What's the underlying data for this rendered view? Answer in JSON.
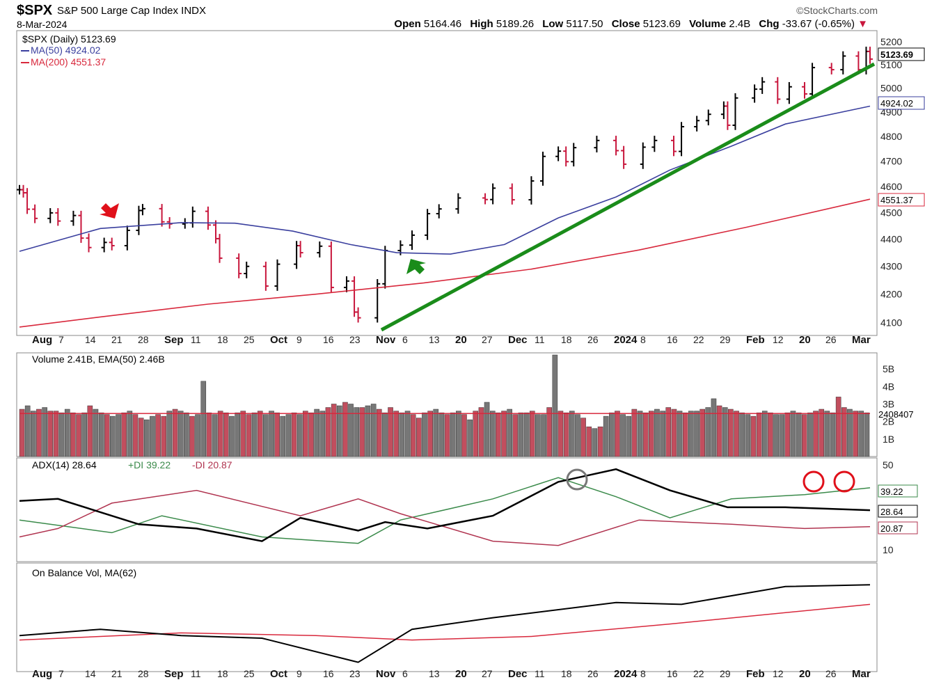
{
  "header": {
    "symbol": "$SPX",
    "name": "S&P 500 Large Cap Index INDX",
    "brand": "©StockCharts.com",
    "date": "8-Mar-2024",
    "open_label": "Open",
    "open": "5164.46",
    "high_label": "High",
    "high": "5189.26",
    "low_label": "Low",
    "low": "5117.50",
    "close_label": "Close",
    "close": "5123.69",
    "volume_label": "Volume",
    "volume": "2.4B",
    "chg_label": "Chg",
    "chg": "-33.67 (-0.65%)"
  },
  "colors": {
    "up": "#000000",
    "down": "#c8163c",
    "ma50": "#3a3f9e",
    "ma200": "#d8283c",
    "trend": "#1a8c1a",
    "pdi": "#3a8a4a",
    "mdi": "#b0334f",
    "vol_up": "#777777",
    "vol_down": "#c24e5e"
  },
  "legends": {
    "price": "$SPX (Daily) 5123.69",
    "ma50": "MA(50) 4924.02",
    "ma200": "MA(200) 4551.37",
    "volume": "Volume 2.41B, EMA(50) 2.46B",
    "adx": "ADX(14) 28.64",
    "pdi": "+DI 39.22",
    "mdi": "-DI 20.87",
    "obv": "On Balance Vol, MA(62)"
  },
  "tags": {
    "close": "5123.69",
    "ma50": "4924.02",
    "ma200": "4551.37",
    "volume": "2408407",
    "pdi": "39.22",
    "adx": "28.64",
    "mdi": "20.87"
  },
  "x_axis_labels": [
    "Aug",
    "7",
    "14",
    "21",
    "28",
    "Sep",
    "11",
    "18",
    "25",
    "Oct",
    "9",
    "16",
    "23",
    "Nov",
    "6",
    "13",
    "20",
    "27",
    "Dec",
    "11",
    "18",
    "26",
    "2024",
    "8",
    "16",
    "22",
    "29",
    "Feb",
    "12",
    "20",
    "26",
    "Mar"
  ],
  "chart_data": [
    {
      "type": "ohlc",
      "title": "$SPX (Daily) 5123.69",
      "ylim": [
        4080,
        5230
      ],
      "y_ticks": [
        4100,
        4200,
        4300,
        4400,
        4500,
        4600,
        4700,
        4800,
        4900,
        5000,
        5100,
        5200
      ],
      "scale": "log",
      "series": [
        {
          "name": "$SPX",
          "values": [
            [
              "2023-07-31",
              4588
            ],
            [
              "2023-08-01",
              4576
            ],
            [
              "2023-08-02",
              4513
            ],
            [
              "2023-08-04",
              4478
            ],
            [
              "2023-08-08",
              4499
            ],
            [
              "2023-08-10",
              4468
            ],
            [
              "2023-08-14",
              4489
            ],
            [
              "2023-08-16",
              4404
            ],
            [
              "2023-08-18",
              4369
            ],
            [
              "2023-08-22",
              4388
            ],
            [
              "2023-08-24",
              4376
            ],
            [
              "2023-08-28",
              4433
            ],
            [
              "2023-08-31",
              4508
            ],
            [
              "2023-09-01",
              4515
            ],
            [
              "2023-09-06",
              4465
            ],
            [
              "2023-09-08",
              4457
            ],
            [
              "2023-09-12",
              4461
            ],
            [
              "2023-09-14",
              4505
            ],
            [
              "2023-09-18",
              4453
            ],
            [
              "2023-09-20",
              4402
            ],
            [
              "2023-09-21",
              4330
            ],
            [
              "2023-09-26",
              4274
            ],
            [
              "2023-09-28",
              4300
            ],
            [
              "2023-10-03",
              4229
            ],
            [
              "2023-10-06",
              4308
            ],
            [
              "2023-10-11",
              4376
            ],
            [
              "2023-10-12",
              4350
            ],
            [
              "2023-10-17",
              4374
            ],
            [
              "2023-10-20",
              4224
            ],
            [
              "2023-10-24",
              4247
            ],
            [
              "2023-10-26",
              4137
            ],
            [
              "2023-10-27",
              4117
            ],
            [
              "2023-11-01",
              4237
            ],
            [
              "2023-11-03",
              4358
            ],
            [
              "2023-11-07",
              4378
            ],
            [
              "2023-11-10",
              4415
            ],
            [
              "2023-11-14",
              4496
            ],
            [
              "2023-11-17",
              4514
            ],
            [
              "2023-11-22",
              4556
            ],
            [
              "2023-11-29",
              4550
            ],
            [
              "2023-12-01",
              4594
            ],
            [
              "2023-12-06",
              4549
            ],
            [
              "2023-12-11",
              4622
            ],
            [
              "2023-12-14",
              4719
            ],
            [
              "2023-12-18",
              4740
            ],
            [
              "2023-12-20",
              4698
            ],
            [
              "2023-12-22",
              4754
            ],
            [
              "2023-12-28",
              4783
            ],
            [
              "2024-01-02",
              4742
            ],
            [
              "2024-01-04",
              4688
            ],
            [
              "2024-01-09",
              4756
            ],
            [
              "2024-01-12",
              4783
            ],
            [
              "2024-01-17",
              4739
            ],
            [
              "2024-01-19",
              4839
            ],
            [
              "2024-01-23",
              4864
            ],
            [
              "2024-01-26",
              4890
            ],
            [
              "2024-01-30",
              4924
            ],
            [
              "2024-01-31",
              4845
            ],
            [
              "2024-02-02",
              4958
            ],
            [
              "2024-02-07",
              4995
            ],
            [
              "2024-02-09",
              5026
            ],
            [
              "2024-02-13",
              4953
            ],
            [
              "2024-02-16",
              5005
            ],
            [
              "2024-02-20",
              4975
            ],
            [
              "2024-02-22",
              5087
            ],
            [
              "2024-02-27",
              5078
            ],
            [
              "2024-03-01",
              5137
            ],
            [
              "2024-03-05",
              5078
            ],
            [
              "2024-03-07",
              5157
            ],
            [
              "2024-03-08",
              5123.69
            ]
          ]
        },
        {
          "name": "MA(50)",
          "values": [
            [
              "2023-07-31",
              4355
            ],
            [
              "2023-08-21",
              4440
            ],
            [
              "2023-09-11",
              4462
            ],
            [
              "2023-09-25",
              4460
            ],
            [
              "2023-10-10",
              4430
            ],
            [
              "2023-10-25",
              4380
            ],
            [
              "2023-11-06",
              4350
            ],
            [
              "2023-11-20",
              4345
            ],
            [
              "2023-12-04",
              4380
            ],
            [
              "2023-12-18",
              4480
            ],
            [
              "2024-01-02",
              4560
            ],
            [
              "2024-01-16",
              4665
            ],
            [
              "2024-02-01",
              4760
            ],
            [
              "2024-02-15",
              4850
            ],
            [
              "2024-03-08",
              4924.02
            ]
          ]
        },
        {
          "name": "MA(200)",
          "values": [
            [
              "2023-07-31",
              4085
            ],
            [
              "2023-08-21",
              4120
            ],
            [
              "2023-09-18",
              4165
            ],
            [
              "2023-10-16",
              4200
            ],
            [
              "2023-11-13",
              4240
            ],
            [
              "2023-12-11",
              4290
            ],
            [
              "2024-01-08",
              4360
            ],
            [
              "2024-02-05",
              4445
            ],
            [
              "2024-03-08",
              4551.37
            ]
          ]
        }
      ]
    },
    {
      "type": "bar",
      "title": "Volume 2.41B, EMA(50) 2.46B",
      "ylim": [
        0,
        5.8
      ],
      "y_ticks": [
        "1B",
        "2B",
        "3B",
        "4B",
        "5B"
      ],
      "values_billions": [
        2.7,
        2.9,
        2.6,
        2.7,
        2.8,
        2.6,
        2.6,
        2.5,
        2.7,
        2.5,
        2.4,
        2.5,
        2.9,
        2.7,
        2.5,
        2.4,
        2.3,
        2.4,
        2.5,
        2.6,
        2.4,
        2.2,
        2.1,
        2.3,
        2.4,
        2.3,
        2.6,
        2.7,
        2.6,
        2.5,
        2.3,
        2.4,
        4.3,
        2.5,
        2.4,
        2.6,
        2.5,
        2.3,
        2.5,
        2.6,
        2.4,
        2.5,
        2.6,
        2.4,
        2.6,
        2.5,
        2.3,
        2.4,
        2.5,
        2.4,
        2.6,
        2.5,
        2.7,
        2.6,
        2.8,
        3.0,
        2.9,
        3.1,
        3.0,
        2.8,
        2.8,
        2.9,
        3.0,
        2.7,
        2.5,
        2.8,
        2.6,
        2.5,
        2.6,
        2.4,
        2.2,
        2.5,
        2.6,
        2.7,
        2.5,
        2.4,
        2.5,
        2.6,
        2.4,
        2.1,
        2.6,
        2.8,
        3.1,
        2.6,
        2.5,
        2.6,
        2.7,
        2.4,
        2.5,
        2.5,
        2.6,
        2.4,
        2.4,
        2.8,
        5.8,
        2.6,
        2.5,
        2.6,
        2.4,
        2.2,
        1.7,
        1.6,
        1.7,
        2.3,
        2.5,
        2.6,
        2.4,
        2.3,
        2.7,
        2.6,
        2.5,
        2.6,
        2.7,
        2.6,
        2.8,
        2.7,
        2.6,
        2.5,
        2.6,
        2.6,
        2.7,
        2.8,
        3.3,
        2.9,
        2.8,
        2.7,
        2.6,
        2.5,
        2.4,
        2.3,
        2.5,
        2.6,
        2.5,
        2.4,
        2.4,
        2.5,
        2.6,
        2.5,
        2.4,
        2.5,
        2.6,
        2.7,
        2.6,
        2.5,
        3.4,
        2.8,
        2.7,
        2.6,
        2.6,
        2.5
      ],
      "ema": 2.46
    },
    {
      "type": "line",
      "title": "ADX(14) 28.64",
      "ylim": [
        5,
        52
      ],
      "y_ticks": [
        10,
        50
      ],
      "series": [
        {
          "name": "ADX(14)",
          "values": [
            [
              "2023-07-31",
              33
            ],
            [
              "2023-08-10",
              34
            ],
            [
              "2023-08-31",
              22
            ],
            [
              "2023-09-15",
              20
            ],
            [
              "2023-10-02",
              14
            ],
            [
              "2023-10-12",
              25
            ],
            [
              "2023-10-27",
              19
            ],
            [
              "2023-11-03",
              23
            ],
            [
              "2023-11-14",
              20
            ],
            [
              "2023-12-01",
              26
            ],
            [
              "2023-12-18",
              42
            ],
            [
              "2024-01-02",
              48
            ],
            [
              "2024-01-16",
              38
            ],
            [
              "2024-01-31",
              30
            ],
            [
              "2024-02-15",
              30
            ],
            [
              "2024-03-08",
              28.64
            ]
          ]
        },
        {
          "name": "+DI",
          "values": [
            [
              "2023-07-31",
              24
            ],
            [
              "2023-08-24",
              18
            ],
            [
              "2023-09-06",
              26
            ],
            [
              "2023-10-02",
              16
            ],
            [
              "2023-10-27",
              13
            ],
            [
              "2023-11-07",
              24
            ],
            [
              "2023-12-01",
              34
            ],
            [
              "2023-12-18",
              44
            ],
            [
              "2024-01-02",
              35
            ],
            [
              "2024-01-16",
              25
            ],
            [
              "2024-02-01",
              34
            ],
            [
              "2024-02-20",
              36
            ],
            [
              "2024-03-08",
              39.22
            ]
          ]
        },
        {
          "name": "-DI",
          "values": [
            [
              "2023-07-31",
              16
            ],
            [
              "2023-08-10",
              20
            ],
            [
              "2023-08-24",
              32
            ],
            [
              "2023-09-15",
              38
            ],
            [
              "2023-10-12",
              26
            ],
            [
              "2023-10-27",
              34
            ],
            [
              "2023-11-07",
              27
            ],
            [
              "2023-12-01",
              14
            ],
            [
              "2023-12-18",
              12
            ],
            [
              "2024-01-08",
              24
            ],
            [
              "2024-02-01",
              22
            ],
            [
              "2024-02-20",
              20
            ],
            [
              "2024-03-08",
              20.87
            ]
          ]
        }
      ]
    },
    {
      "type": "line",
      "title": "On Balance Vol, MA(62)",
      "series": [
        {
          "name": "On Balance Vol",
          "values": [
            [
              "2023-07-31",
              0.35
            ],
            [
              "2023-08-21",
              0.42
            ],
            [
              "2023-09-11",
              0.35
            ],
            [
              "2023-10-02",
              0.32
            ],
            [
              "2023-10-27",
              0.05
            ],
            [
              "2023-11-10",
              0.42
            ],
            [
              "2023-12-01",
              0.55
            ],
            [
              "2024-01-02",
              0.72
            ],
            [
              "2024-01-19",
              0.7
            ],
            [
              "2024-02-15",
              0.9
            ],
            [
              "2024-03-08",
              0.92
            ]
          ]
        },
        {
          "name": "MA(62)",
          "values": [
            [
              "2023-07-31",
              0.3
            ],
            [
              "2023-09-11",
              0.38
            ],
            [
              "2023-10-16",
              0.35
            ],
            [
              "2023-11-10",
              0.3
            ],
            [
              "2023-12-11",
              0.34
            ],
            [
              "2024-01-16",
              0.48
            ],
            [
              "2024-03-08",
              0.7
            ]
          ]
        }
      ]
    }
  ]
}
